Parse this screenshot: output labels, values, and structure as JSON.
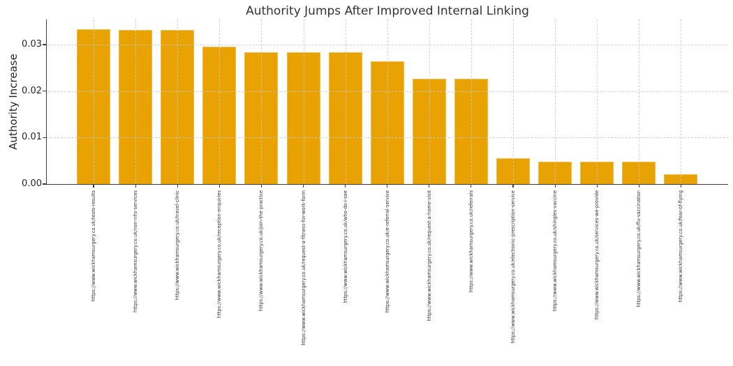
{
  "chart_data": {
    "type": "bar",
    "title": "Authority Jumps After Improved Internal Linking",
    "xlabel": "",
    "ylabel": "Authority Increase",
    "categories": [
      "https://www.wickhamsurgery.co.uk/tests-results",
      "https://www.wickhamsurgery.co.uk/non-nhs-services",
      "https://www.wickhamsurgery.co.uk/travel-clinic",
      "https://www.wickhamsurgery.co.uk/reception-enquiries",
      "https://www.wickhamsurgery.co.uk/join-the-practice",
      "https://www.wickhamsurgery.co.uk/request-a-fitness-for-work-form",
      "https://www.wickhamsurgery.co.uk/who-do-i-see",
      "https://www.wickhamsurgery.co.uk/e-referral-service",
      "https://www.wickhamsurgery.co.uk/request-a-home-visit",
      "https://www.wickhamsurgery.co.uk/referrals",
      "https://www.wickhamsurgery.co.uk/electronic-prescription-service",
      "https://www.wickhamsurgery.co.uk/shingles-vaccine",
      "https://www.wickhamsurgery.co.uk/services-we-provide",
      "https://www.wickhamsurgery.co.uk/flu-vaccination",
      "https://www.wickhamsurgery.co.uk/fear-of-flying"
    ],
    "values": [
      0.0333,
      0.0332,
      0.0332,
      0.0295,
      0.0283,
      0.0283,
      0.0283,
      0.0264,
      0.0227,
      0.0227,
      0.0056,
      0.0048,
      0.0048,
      0.0048,
      0.0021
    ],
    "ylim": [
      0,
      0.0354
    ],
    "yticks": [
      {
        "value": 0,
        "label": "0.00"
      },
      {
        "value": 0.01,
        "label": "0.01"
      },
      {
        "value": 0.02,
        "label": "0.02"
      },
      {
        "value": 0.03,
        "label": "0.03"
      }
    ],
    "grid": true,
    "grid_style": "dashed",
    "legend": false,
    "colors": {
      "bar_fill": "#E8A202",
      "bar_edge": "#F3BC46",
      "grid": "rgba(201,201,201,0.85)",
      "axis": "#3c3c3c",
      "title_text": "#333333",
      "tick_text": "#262626",
      "background": "#ffffff"
    }
  }
}
